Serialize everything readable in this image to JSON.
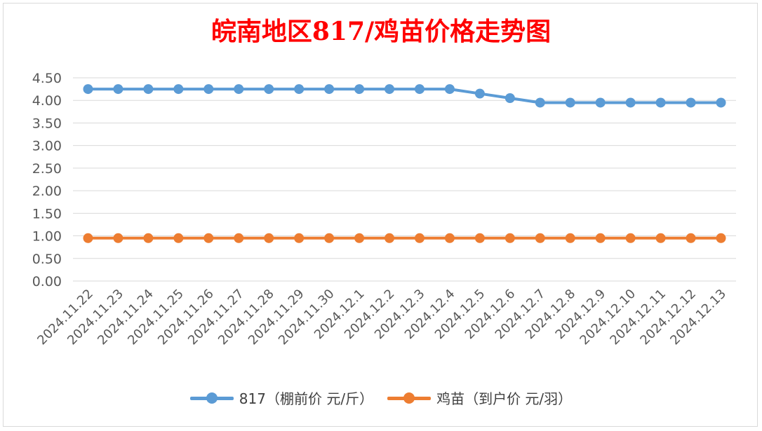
{
  "chart_data": {
    "type": "line",
    "title": "皖南地区817/鸡苗价格走势图",
    "categories": [
      "2024.11.22",
      "2024.11.23",
      "2024.11.24",
      "2024.11.25",
      "2024.11.26",
      "2024.11.27",
      "2024.11.28",
      "2024.11.29",
      "2024.11.30",
      "2024.12.1",
      "2024.12.2",
      "2024.12.3",
      "2024.12.4",
      "2024.12.5",
      "2024.12.6",
      "2024.12.7",
      "2024.12.8",
      "2024.12.9",
      "2024.12.10",
      "2024.12.11",
      "2024.12.12",
      "2024.12.13"
    ],
    "series": [
      {
        "name": "817（棚前价 元/斤）",
        "color": "#5b9bd5",
        "values": [
          4.25,
          4.25,
          4.25,
          4.25,
          4.25,
          4.25,
          4.25,
          4.25,
          4.25,
          4.25,
          4.25,
          4.25,
          4.25,
          4.15,
          4.05,
          3.95,
          3.95,
          3.95,
          3.95,
          3.95,
          3.95,
          3.95
        ]
      },
      {
        "name": "鸡苗（到户价 元/羽）",
        "color": "#ed7d31",
        "values": [
          0.95,
          0.95,
          0.95,
          0.95,
          0.95,
          0.95,
          0.95,
          0.95,
          0.95,
          0.95,
          0.95,
          0.95,
          0.95,
          0.95,
          0.95,
          0.95,
          0.95,
          0.95,
          0.95,
          0.95,
          0.95,
          0.95
        ]
      }
    ],
    "ylim": [
      0,
      4.5
    ],
    "yticks": [
      "0.00",
      "0.50",
      "1.00",
      "1.50",
      "2.00",
      "2.50",
      "3.00",
      "3.50",
      "4.00",
      "4.50"
    ],
    "grid": true,
    "legend": "bottom"
  }
}
